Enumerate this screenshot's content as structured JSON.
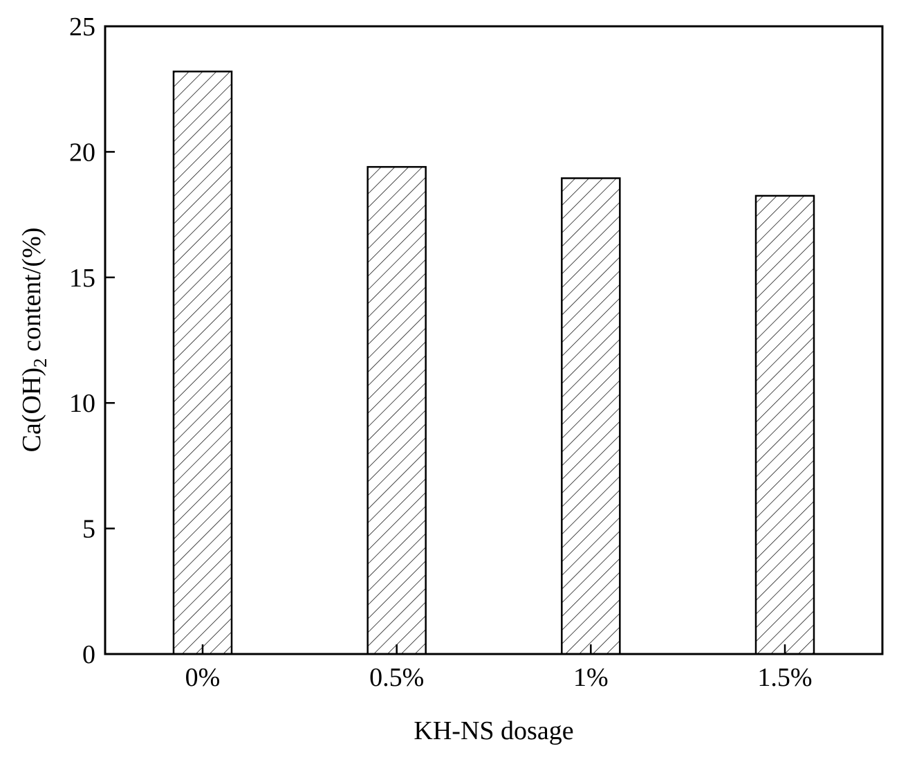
{
  "chart_data": {
    "type": "bar",
    "categories": [
      "0%",
      "0.5%",
      "1%",
      "1.5%"
    ],
    "values": [
      23.2,
      19.4,
      18.95,
      18.25
    ],
    "title": "",
    "xlabel": "KH-NS dosage",
    "ylabel": {
      "main": "Ca(OH)",
      "subscript": "2",
      "rest": " content/(%)"
    },
    "ylim": [
      0,
      25
    ],
    "yticks": [
      "0",
      "5",
      "10",
      "15",
      "20",
      "25"
    ],
    "grid": false,
    "legend": "none",
    "bar_fill": "hatched",
    "colors": {
      "bar_edge": "#000000",
      "bar_face": "#ffffff",
      "axis": "#000000"
    }
  }
}
